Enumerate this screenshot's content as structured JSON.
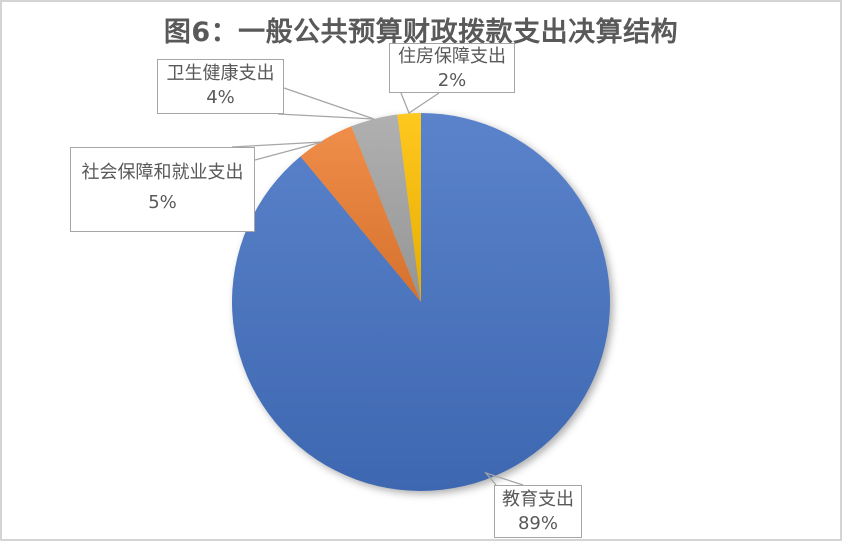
{
  "figure": {
    "title": "图6：一般公共预算财政拨款支出决算结构",
    "title_color": "#595959",
    "background_color": "#ffffff",
    "border_color": "#d4d4d4"
  },
  "chart_data": {
    "type": "pie",
    "title": "图6：一般公共预算财政拨款支出决算结构",
    "unit": "percent",
    "direction": "clockwise",
    "start_angle_deg_from_12_oclock": 0,
    "slices": [
      {
        "label": "教育支出",
        "value": 89,
        "color": "#4472C4"
      },
      {
        "label": "社会保障和就业支出",
        "value": 5,
        "color": "#ED7D31"
      },
      {
        "label": "卫生健康支出",
        "value": 4,
        "color": "#A5A5A5"
      },
      {
        "label": "住房保障支出",
        "value": 2,
        "color": "#FFC000"
      }
    ],
    "legend": "none",
    "data_labels": "callout boxes showing category name and percent",
    "leader_line_color": "#a6a6a6",
    "label_text_color": "#595959"
  },
  "callouts": [
    {
      "line1": "卫生健康支出",
      "line2": "4%"
    },
    {
      "line1": "社会保障和就业支出",
      "line2": "5%"
    },
    {
      "line1": "住房保障支出",
      "line2": "2%"
    },
    {
      "line1": "教育支出",
      "line2": "89%"
    }
  ]
}
